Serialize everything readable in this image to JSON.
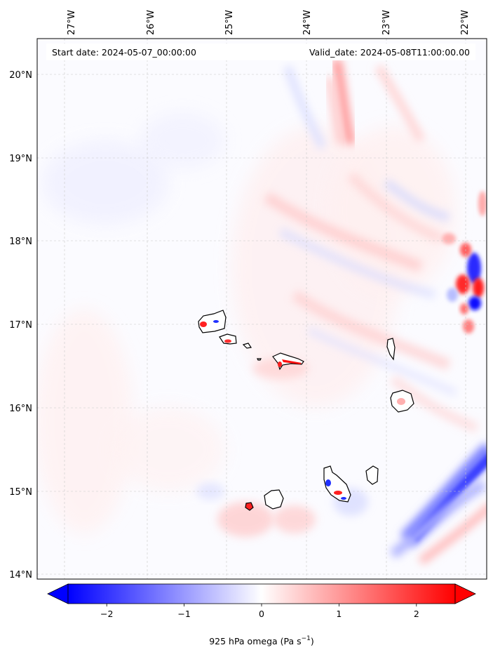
{
  "map": {
    "start_date": "Start date: 2024-05-07_00:00:00",
    "valid_date": "Valid_date: 2024-05-08T11:00:00.00",
    "lon_labels": [
      "27°W",
      "26°W",
      "25°W",
      "24°W",
      "23°W",
      "22°W"
    ],
    "lat_labels": [
      "20°N",
      "19°N",
      "18°N",
      "17°N",
      "16°N",
      "15°N",
      "14°N"
    ],
    "gridlines": true,
    "coastline_color": "#000000"
  },
  "colorbar": {
    "label_prefix": "925 hPa omega (Pa s",
    "label_exp": "−1",
    "label_suffix": ")",
    "ticks": [
      "−2",
      "−1",
      "0",
      "1",
      "2"
    ],
    "tick_values": [
      -2,
      -1,
      0,
      1,
      2
    ],
    "vmin": -2.5,
    "vmax": 2.5,
    "colormap": "bwr",
    "colors": {
      "low": "#0000ff",
      "mid": "#ffffff",
      "high": "#ff0000"
    },
    "extend": "both"
  }
}
